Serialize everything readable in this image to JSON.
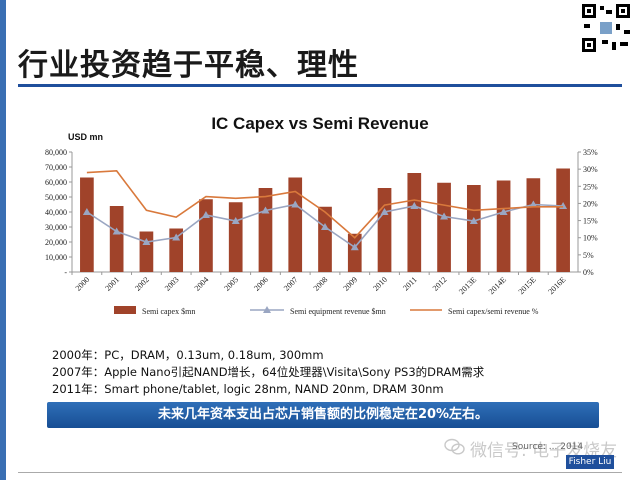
{
  "slide": {
    "title": "行业投资趋于平稳、理性",
    "notes": [
      "2000年：PC，DRAM，0.13um, 0.18um, 300mm",
      "2007年：Apple Nano引起NAND增长，64位处理器\\Visita\\Sony PS3的DRAM需求",
      "2011年：Smart phone/tablet, logic 28nm, NAND 20nm, DRAM 30nm"
    ],
    "banner": "未来几年资本支出占芯片销售额的比例稳定在20%左右。",
    "source": "Source: ... 2014",
    "watermark": "微信号: 电子发烧友",
    "badge": "Fisher Liu"
  },
  "chart_data": {
    "type": "bar",
    "title": "IC Capex vs Semi Revenue",
    "ylabel": "USD mn",
    "categories": [
      "2000",
      "2001",
      "2002",
      "2003",
      "2004",
      "2005",
      "2006",
      "2007",
      "2008",
      "2009",
      "2010",
      "2011",
      "2012",
      "2013E",
      "2014E",
      "2015E",
      "2016E"
    ],
    "ylim": [
      0,
      80000
    ],
    "y_ticks": [
      "-",
      "10,000",
      "20,000",
      "30,000",
      "40,000",
      "50,000",
      "60,000",
      "70,000",
      "80,000"
    ],
    "y2lim": [
      0,
      35
    ],
    "y2_ticks": [
      "0%",
      "5%",
      "10%",
      "15%",
      "20%",
      "25%",
      "30%",
      "35%"
    ],
    "series": [
      {
        "name": "Semi capex $mn",
        "type": "bar",
        "color": "#a0432a",
        "axis": "left",
        "values": [
          63000,
          44000,
          27000,
          29000,
          48500,
          46500,
          56000,
          63000,
          43500,
          25500,
          56000,
          66000,
          59500,
          58000,
          61000,
          62500,
          69000
        ]
      },
      {
        "name": "Semi equipment revenue $mn",
        "type": "line",
        "color": "#9aa6c2",
        "marker": "triangle",
        "axis": "left",
        "values": [
          40000,
          27000,
          20000,
          23000,
          38000,
          34000,
          41000,
          45000,
          30000,
          16500,
          40000,
          44000,
          37000,
          34000,
          40000,
          45000,
          44000
        ]
      },
      {
        "name": "Semi capex/semi revenue %",
        "type": "line",
        "color": "#d9793c",
        "axis": "right",
        "values": [
          29,
          29.5,
          18,
          16,
          22,
          21.5,
          22,
          23.5,
          17.5,
          10,
          19.5,
          21,
          19.5,
          18,
          18.5,
          19,
          19
        ]
      }
    ],
    "legend_position": "bottom",
    "grid": false
  }
}
